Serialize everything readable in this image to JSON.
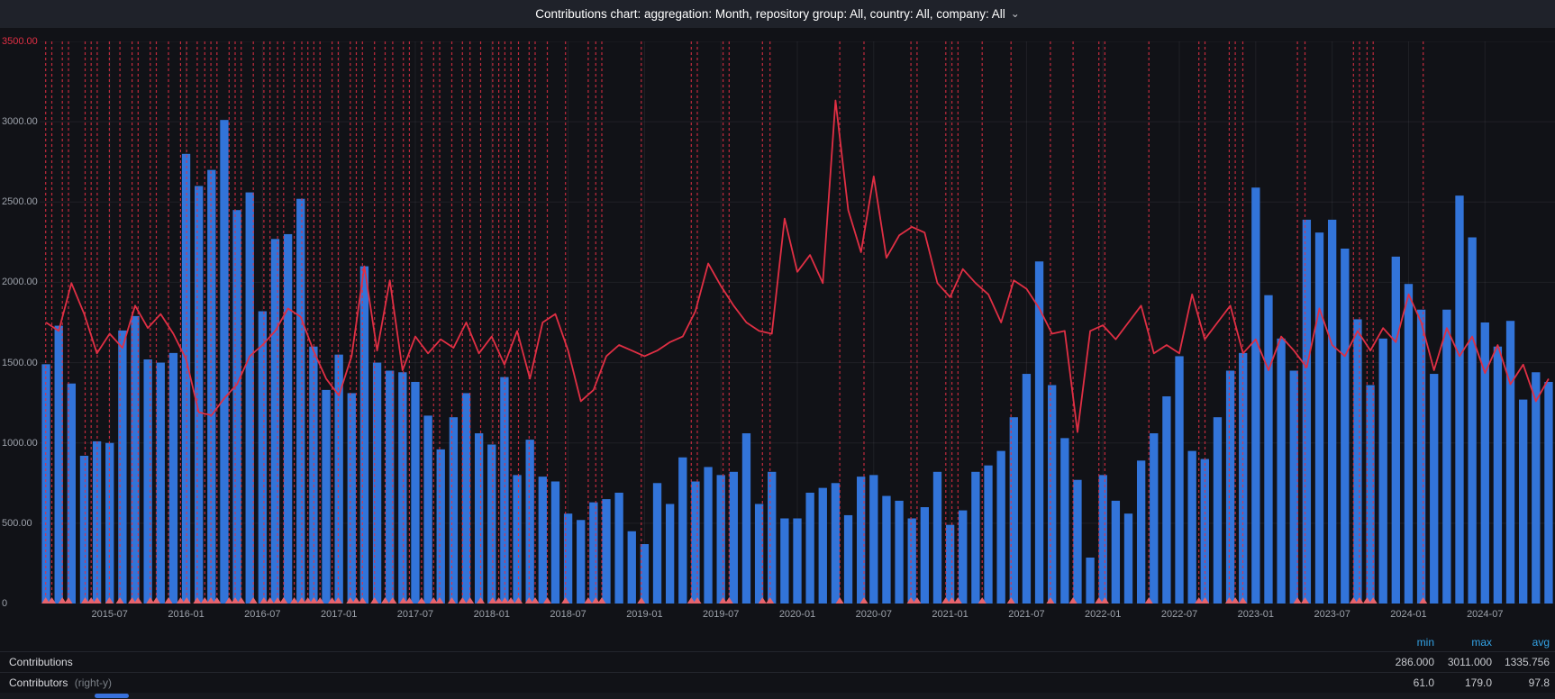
{
  "header": {
    "title": "Contributions chart: aggregation: Month, repository group: All, country: All, company: All"
  },
  "icons": {
    "chevron_down": "⌄"
  },
  "colors": {
    "panel_bg": "#111217",
    "header_bg": "#1f222a",
    "bar": "#3274d9",
    "line": "#e02f44",
    "annotation": "#e02f44",
    "annotation_marker": "#e8636c",
    "grid": "rgba(204,204,220,0.08)",
    "axis_text": "#9da2ab",
    "top_axis_label": "#e02f44",
    "legend_header": "#33a2e5",
    "scroll_thumb": "#3871dc"
  },
  "y_axis": {
    "labels": [
      "3500.00",
      "3000.00",
      "2500.00",
      "2000.00",
      "1500.00",
      "1000.00",
      "500.00",
      "0"
    ],
    "min": 0,
    "max": 3500
  },
  "x_axis": {
    "ticks": [
      {
        "label": "2015-07",
        "m": 5
      },
      {
        "label": "2016-01",
        "m": 11
      },
      {
        "label": "2016-07",
        "m": 17
      },
      {
        "label": "2017-01",
        "m": 23
      },
      {
        "label": "2017-07",
        "m": 29
      },
      {
        "label": "2018-01",
        "m": 35
      },
      {
        "label": "2018-07",
        "m": 41
      },
      {
        "label": "2019-01",
        "m": 47
      },
      {
        "label": "2019-07",
        "m": 53
      },
      {
        "label": "2020-01",
        "m": 59
      },
      {
        "label": "2020-07",
        "m": 65
      },
      {
        "label": "2021-01",
        "m": 71
      },
      {
        "label": "2021-07",
        "m": 77
      },
      {
        "label": "2022-01",
        "m": 83
      },
      {
        "label": "2022-07",
        "m": 89
      },
      {
        "label": "2023-01",
        "m": 95
      },
      {
        "label": "2023-07",
        "m": 101
      },
      {
        "label": "2024-01",
        "m": 107
      },
      {
        "label": "2024-07",
        "m": 113
      }
    ]
  },
  "chart_data": {
    "type": "bar+line",
    "title": "Contributions chart: aggregation: Month, repository group: All, country: All, company: All",
    "x_months": [
      "2015-02",
      "2015-03",
      "2015-04",
      "2015-05",
      "2015-06",
      "2015-07",
      "2015-08",
      "2015-09",
      "2015-10",
      "2015-11",
      "2015-12",
      "2016-01",
      "2016-02",
      "2016-03",
      "2016-04",
      "2016-05",
      "2016-06",
      "2016-07",
      "2016-08",
      "2016-09",
      "2016-10",
      "2016-11",
      "2016-12",
      "2017-01",
      "2017-02",
      "2017-03",
      "2017-04",
      "2017-05",
      "2017-06",
      "2017-07",
      "2017-08",
      "2017-09",
      "2017-10",
      "2017-11",
      "2017-12",
      "2018-01",
      "2018-02",
      "2018-03",
      "2018-04",
      "2018-05",
      "2018-06",
      "2018-07",
      "2018-08",
      "2018-09",
      "2018-10",
      "2018-11",
      "2018-12",
      "2019-01",
      "2019-02",
      "2019-03",
      "2019-04",
      "2019-05",
      "2019-06",
      "2019-07",
      "2019-08",
      "2019-09",
      "2019-10",
      "2019-11",
      "2019-12",
      "2020-01",
      "2020-02",
      "2020-03",
      "2020-04",
      "2020-05",
      "2020-06",
      "2020-07",
      "2020-08",
      "2020-09",
      "2020-10",
      "2020-11",
      "2020-12",
      "2021-01",
      "2021-02",
      "2021-03",
      "2021-04",
      "2021-05",
      "2021-06",
      "2021-07",
      "2021-08",
      "2021-09",
      "2021-10",
      "2021-11",
      "2021-12",
      "2022-01",
      "2022-02",
      "2022-03",
      "2022-04",
      "2022-05",
      "2022-06",
      "2022-07",
      "2022-08",
      "2022-09",
      "2022-10",
      "2022-11",
      "2022-12",
      "2023-01",
      "2023-02",
      "2023-03",
      "2023-04",
      "2023-05",
      "2023-06",
      "2023-07",
      "2023-08",
      "2023-09",
      "2023-10",
      "2023-11",
      "2023-12",
      "2024-01",
      "2024-02",
      "2024-03",
      "2024-04",
      "2024-05",
      "2024-06",
      "2024-07",
      "2024-08",
      "2024-09",
      "2024-10",
      "2024-11",
      "2024-12"
    ],
    "series": [
      {
        "name": "Contributions",
        "type": "bar",
        "axis": "left",
        "color": "#3274d9",
        "values": [
          1490,
          1730,
          1370,
          920,
          1010,
          1000,
          1700,
          1790,
          1520,
          1500,
          1560,
          2800,
          2600,
          2700,
          3011,
          2450,
          2560,
          1820,
          2270,
          2300,
          2520,
          1600,
          1330,
          1550,
          1310,
          2100,
          1500,
          1450,
          1440,
          1380,
          1170,
          960,
          1160,
          1310,
          1060,
          990,
          1410,
          800,
          1020,
          790,
          760,
          560,
          520,
          630,
          650,
          690,
          450,
          370,
          750,
          620,
          910,
          760,
          850,
          800,
          820,
          1060,
          620,
          820,
          530,
          530,
          690,
          720,
          750,
          550,
          790,
          800,
          670,
          640,
          530,
          600,
          820,
          490,
          580,
          820,
          860,
          950,
          1160,
          1430,
          2130,
          1360,
          1030,
          770,
          286,
          800,
          640,
          560,
          890,
          1060,
          1290,
          1540,
          950,
          900,
          1160,
          1450,
          1560,
          2590,
          1920,
          1650,
          1450,
          2390,
          2310,
          2390,
          2210,
          1770,
          1360,
          1650,
          2160,
          1990,
          1830,
          1430,
          1830,
          2540,
          2280,
          1750,
          1600,
          1760,
          1270,
          1440,
          1380
        ]
      },
      {
        "name": "Contributors",
        "type": "line",
        "axis": "right",
        "color": "#e02f44",
        "values": [
          100,
          97,
          114,
          103,
          89,
          96,
          91,
          106,
          98,
          103,
          96,
          87,
          68,
          67,
          73,
          78,
          88,
          92,
          97,
          105,
          102,
          90,
          80,
          74,
          88,
          120,
          90,
          115,
          83,
          95,
          89,
          94,
          91,
          100,
          89,
          95,
          85,
          97,
          80,
          100,
          103,
          90,
          72,
          76,
          88,
          92,
          90,
          88,
          90,
          93,
          95,
          104,
          121,
          113,
          106,
          100,
          97,
          96,
          137,
          118,
          124,
          114,
          179,
          140,
          125,
          152,
          123,
          131,
          134,
          132,
          114,
          109,
          119,
          114,
          110,
          100,
          115,
          112,
          105,
          96,
          97,
          61,
          97,
          99,
          94,
          100,
          106,
          89,
          92,
          89,
          110,
          94,
          100,
          106,
          89,
          94,
          83,
          95,
          90,
          84,
          105,
          92,
          88,
          97,
          90,
          98,
          93,
          110,
          100,
          83,
          98,
          88,
          95,
          82,
          92,
          78,
          85,
          72,
          80
        ]
      }
    ],
    "left_ylim": [
      0,
      3500
    ],
    "right_ylim": [
      0,
      200
    ],
    "grid": true,
    "legend_position": "bottom",
    "annotations_frac": [
      0.004,
      0.008,
      0.015,
      0.019,
      0.03,
      0.034,
      0.038,
      0.046,
      0.053,
      0.061,
      0.065,
      0.073,
      0.077,
      0.085,
      0.093,
      0.097,
      0.104,
      0.109,
      0.113,
      0.117,
      0.125,
      0.129,
      0.133,
      0.141,
      0.148,
      0.152,
      0.157,
      0.161,
      0.168,
      0.173,
      0.177,
      0.181,
      0.185,
      0.193,
      0.197,
      0.205,
      0.209,
      0.213,
      0.221,
      0.228,
      0.233,
      0.24,
      0.244,
      0.252,
      0.26,
      0.264,
      0.272,
      0.279,
      0.284,
      0.291,
      0.299,
      0.303,
      0.307,
      0.311,
      0.316,
      0.323,
      0.327,
      0.335,
      0.347,
      0.362,
      0.367,
      0.371,
      0.397,
      0.43,
      0.434,
      0.451,
      0.455,
      0.477,
      0.482,
      0.528,
      0.544,
      0.575,
      0.579,
      0.598,
      0.602,
      0.606,
      0.622,
      0.641,
      0.667,
      0.682,
      0.699,
      0.703,
      0.732,
      0.765,
      0.769,
      0.785,
      0.789,
      0.794,
      0.83,
      0.835,
      0.867,
      0.871,
      0.876,
      0.88,
      0.913
    ]
  },
  "legend": {
    "columns": [
      "min",
      "max",
      "avg"
    ],
    "rows": [
      {
        "name": "Contributions",
        "suffix": "",
        "min": "286.000",
        "max": "3011.000",
        "avg": "1335.756"
      },
      {
        "name": "Contributors",
        "suffix": "(right-y)",
        "min": "61.0",
        "max": "179.0",
        "avg": "97.8"
      }
    ]
  }
}
